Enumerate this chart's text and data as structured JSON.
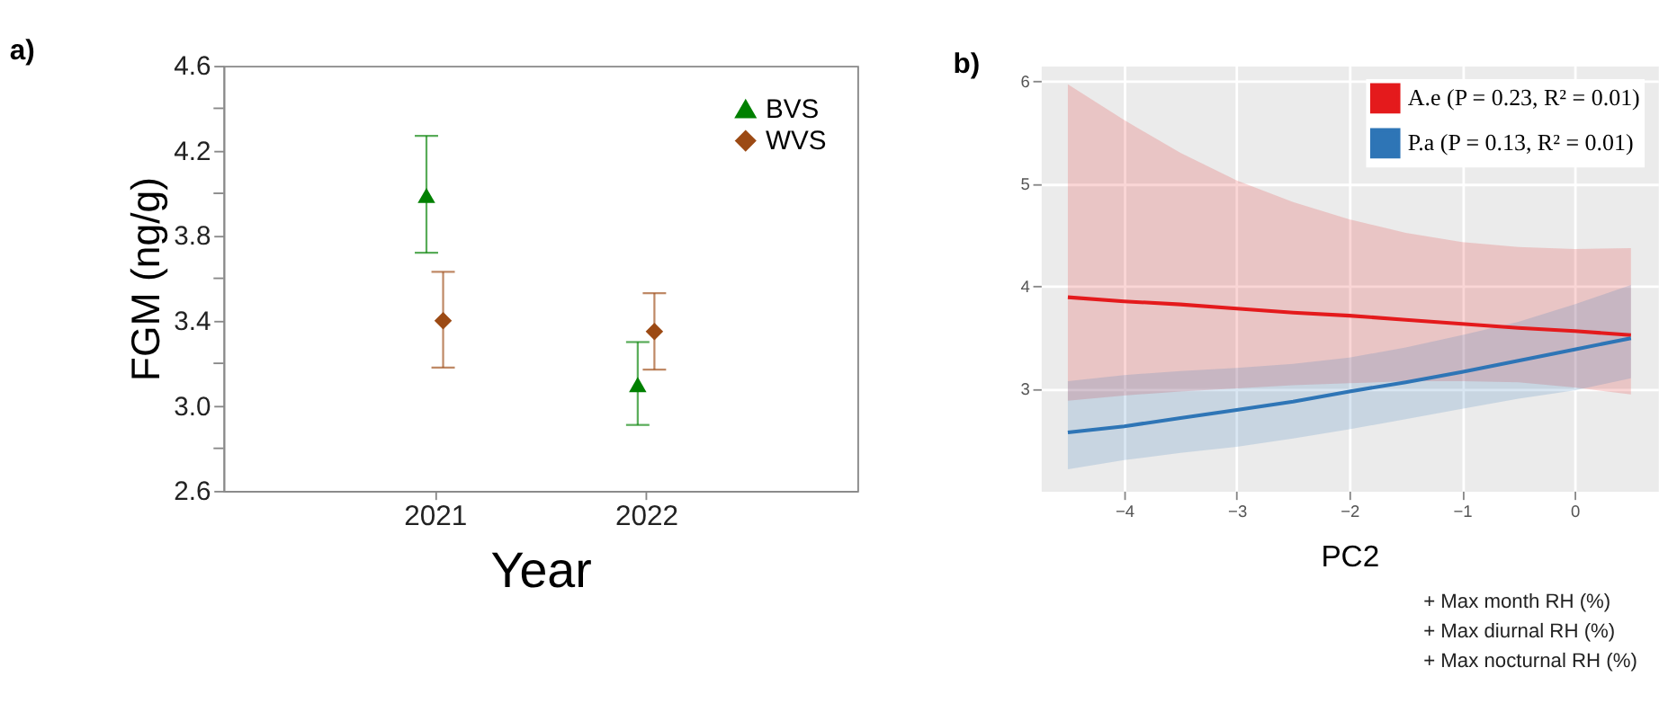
{
  "chart_data": [
    {
      "type": "scatter",
      "title": "a)",
      "xlabel": "Year",
      "ylabel": "FGM (ng/g)",
      "categories": [
        "2021",
        "2022"
      ],
      "ylim": [
        2.6,
        4.6
      ],
      "yticks": [
        2.6,
        {
          "value": 2.8,
          "label": null
        },
        {
          "value": 3,
          "label": "3.0"
        },
        {
          "value": 3.2,
          "label": null
        },
        3.4,
        {
          "value": 3.6,
          "label": null
        },
        3.8,
        {
          "value": 4,
          "label": null
        },
        4.2,
        {
          "value": 4.4,
          "label": null
        },
        4.6
      ],
      "grid": false,
      "legend": "top right",
      "series": [
        {
          "name": "BVS",
          "color": "#008000",
          "marker": "triangle",
          "values": [
            3.99,
            3.1
          ],
          "errors": [
            [
              3.72,
              4.27
            ],
            [
              2.91,
              3.3
            ]
          ]
        },
        {
          "name": "WVS",
          "color": "#9c4a14",
          "marker": "diamond",
          "values": [
            3.4,
            3.35
          ],
          "errors": [
            [
              3.18,
              3.63
            ],
            [
              3.17,
              3.53
            ]
          ]
        }
      ]
    },
    {
      "type": "line",
      "title": "b)",
      "xlabel": "PC2",
      "xlim": [
        -4.74,
        0.74
      ],
      "xticks": [
        -4,
        -3,
        -2,
        -1,
        0
      ],
      "ylim": [
        2.0,
        6.15
      ],
      "yticks": [
        3,
        4,
        5,
        6
      ],
      "grid": true,
      "legend": "top right",
      "annotations": [
        "+ Max month RH (%)",
        "+ Max diurnal RH (%)",
        "+ Max nocturnal RH (%)"
      ],
      "series": [
        {
          "name": "A.e (P = 0.23, R² = 0.01)",
          "color": "#e41a1c",
          "x": [
            -4.5,
            -4,
            -3.5,
            -3,
            -2.5,
            -2,
            -1.5,
            -1,
            -0.5,
            0,
            0.5
          ],
          "values": [
            3.89,
            3.85,
            3.82,
            3.78,
            3.74,
            3.71,
            3.67,
            3.63,
            3.59,
            3.56,
            3.52
          ],
          "upper": [
            5.97,
            5.62,
            5.3,
            5.03,
            4.82,
            4.65,
            4.52,
            4.43,
            4.38,
            4.36,
            4.37
          ],
          "lower": [
            2.88,
            2.93,
            2.97,
            3.0,
            3.03,
            3.05,
            3.07,
            3.07,
            3.06,
            3.01,
            2.94
          ]
        },
        {
          "name": "P.a (P = 0.13, R² = 0.01)",
          "color": "#2e75b6",
          "x": [
            -4.5,
            -4,
            -3.5,
            -3,
            -2.5,
            -2,
            -1.5,
            -1,
            -0.5,
            0,
            0.5
          ],
          "values": [
            2.57,
            2.63,
            2.71,
            2.79,
            2.87,
            2.97,
            3.06,
            3.16,
            3.27,
            3.38,
            3.49
          ],
          "upper": [
            3.07,
            3.13,
            3.17,
            3.2,
            3.24,
            3.3,
            3.4,
            3.52,
            3.65,
            3.82,
            4.01
          ],
          "lower": [
            2.21,
            2.3,
            2.37,
            2.43,
            2.51,
            2.6,
            2.7,
            2.8,
            2.9,
            2.98,
            3.1
          ]
        }
      ]
    }
  ]
}
